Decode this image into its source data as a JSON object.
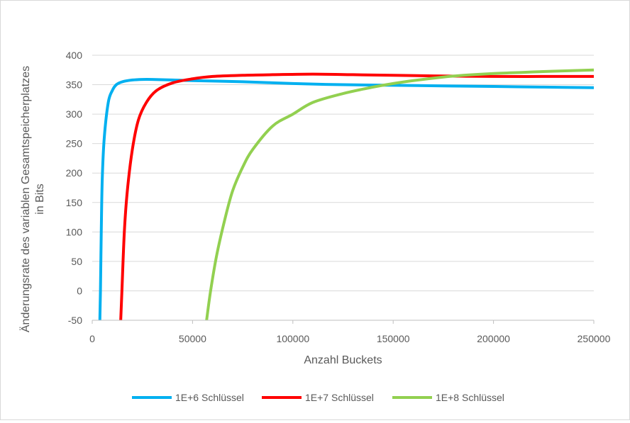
{
  "chart_data": {
    "type": "line",
    "title": "",
    "xlabel": "Anzahl Buckets",
    "ylabel_lines": [
      "Änderungsrate des variablen Gesamtspeicherplatzes",
      "in Bits"
    ],
    "xlim": [
      0,
      250000
    ],
    "ylim": [
      -50,
      400
    ],
    "x_ticks": [
      "0",
      "50000",
      "100000",
      "150000",
      "200000",
      "250000"
    ],
    "y_ticks": [
      "-50",
      "0",
      "50",
      "100",
      "150",
      "200",
      "250",
      "300",
      "350",
      "400"
    ],
    "grid": "horizontal",
    "legend_position": "bottom",
    "series": [
      {
        "name": "1E+6 Schlüssel",
        "color": "#00b0f0",
        "points": [
          [
            3800,
            -50
          ],
          [
            4100,
            0
          ],
          [
            4500,
            100
          ],
          [
            5000,
            190
          ],
          [
            6000,
            260
          ],
          [
            8000,
            320
          ],
          [
            10000,
            340
          ],
          [
            12000,
            350
          ],
          [
            15000,
            355
          ],
          [
            20000,
            358
          ],
          [
            25000,
            359
          ],
          [
            30000,
            359
          ],
          [
            40000,
            358
          ],
          [
            50000,
            357
          ],
          [
            75000,
            355
          ],
          [
            100000,
            352
          ],
          [
            125000,
            350
          ],
          [
            150000,
            349
          ],
          [
            175000,
            348
          ],
          [
            200000,
            347
          ],
          [
            225000,
            346
          ],
          [
            250000,
            345
          ]
        ]
      },
      {
        "name": "1E+7 Schlüssel",
        "color": "#ff0000",
        "points": [
          [
            14200,
            -50
          ],
          [
            14800,
            0
          ],
          [
            16000,
            100
          ],
          [
            17500,
            170
          ],
          [
            20000,
            240
          ],
          [
            23000,
            290
          ],
          [
            27000,
            320
          ],
          [
            32000,
            340
          ],
          [
            40000,
            353
          ],
          [
            50000,
            360
          ],
          [
            60000,
            364
          ],
          [
            75000,
            366
          ],
          [
            90000,
            367
          ],
          [
            110000,
            368
          ],
          [
            130000,
            367
          ],
          [
            150000,
            366
          ],
          [
            170000,
            365
          ],
          [
            200000,
            364
          ],
          [
            225000,
            364
          ],
          [
            250000,
            364
          ]
        ]
      },
      {
        "name": "1E+8 Schlüssel",
        "color": "#92d050",
        "points": [
          [
            57000,
            -50
          ],
          [
            59000,
            0
          ],
          [
            62000,
            60
          ],
          [
            66000,
            120
          ],
          [
            70000,
            170
          ],
          [
            75000,
            210
          ],
          [
            80000,
            240
          ],
          [
            90000,
            280
          ],
          [
            100000,
            300
          ],
          [
            110000,
            320
          ],
          [
            125000,
            335
          ],
          [
            140000,
            346
          ],
          [
            150000,
            352
          ],
          [
            160000,
            357
          ],
          [
            175000,
            363
          ],
          [
            185000,
            366
          ],
          [
            200000,
            369
          ],
          [
            215000,
            371
          ],
          [
            230000,
            373
          ],
          [
            250000,
            375
          ]
        ]
      }
    ]
  }
}
